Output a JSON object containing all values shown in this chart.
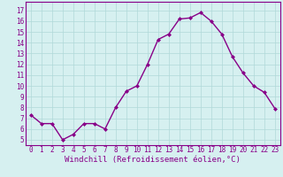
{
  "x": [
    0,
    1,
    2,
    3,
    4,
    5,
    6,
    7,
    8,
    9,
    10,
    11,
    12,
    13,
    14,
    15,
    16,
    17,
    18,
    19,
    20,
    21,
    22,
    23
  ],
  "y": [
    7.3,
    6.5,
    6.5,
    5.0,
    5.5,
    6.5,
    6.5,
    6.0,
    8.0,
    9.5,
    10.0,
    12.0,
    14.3,
    14.8,
    16.2,
    16.3,
    16.8,
    16.0,
    14.8,
    12.7,
    11.2,
    10.0,
    9.4,
    7.9
  ],
  "line_color": "#880088",
  "marker": "D",
  "markersize": 2.0,
  "linewidth": 1.0,
  "xlabel": "Windchill (Refroidissement éolien,°C)",
  "xlabel_fontsize": 6.5,
  "ylabel_ticks": [
    5,
    6,
    7,
    8,
    9,
    10,
    11,
    12,
    13,
    14,
    15,
    16,
    17
  ],
  "xtick_labels": [
    "0",
    "1",
    "2",
    "3",
    "4",
    "5",
    "6",
    "7",
    "8",
    "9",
    "10",
    "11",
    "12",
    "13",
    "14",
    "15",
    "16",
    "17",
    "18",
    "19",
    "20",
    "21",
    "22",
    "23"
  ],
  "ylim": [
    4.5,
    17.8
  ],
  "xlim": [
    -0.5,
    23.5
  ],
  "bg_color": "#d6f0f0",
  "grid_color": "#b0d8d8",
  "tick_color": "#880088",
  "tick_fontsize": 5.5,
  "spine_color": "#880088"
}
